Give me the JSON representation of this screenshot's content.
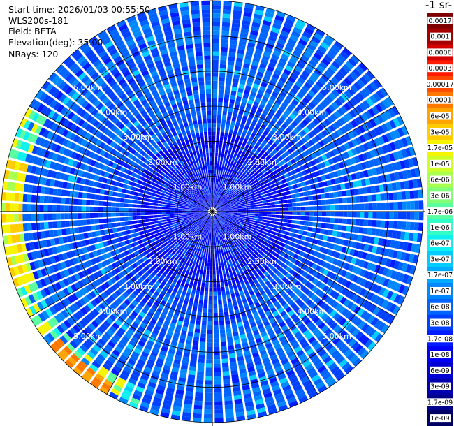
{
  "info": {
    "start_time": "Start time: 2026/01/03 00:55:50",
    "instrument": "WLS200s-181",
    "field": "Field: BETA",
    "elevation": "Elevation(deg): 35.00",
    "nrays": "NRays: 120"
  },
  "colorbar": {
    "title": "-1 sr-",
    "labels": [
      "0.0017",
      "0.001",
      "0.0006",
      "0.0003",
      "0.00017",
      "0.0001",
      "6e-05",
      "3e-05",
      "1.7e-05",
      "1e-05",
      "6e-06",
      "3e-06",
      "1.7e-06",
      "1e-06",
      "6e-07",
      "3e-07",
      "1.7e-07",
      "1e-07",
      "6e-08",
      "3e-08",
      "1.7e-08",
      "1e-08",
      "6e-09",
      "3e-09",
      "1.7e-09",
      "1e-09"
    ],
    "colors": [
      "#7f0000",
      "#a50000",
      "#d40000",
      "#ff1a00",
      "#ff4a00",
      "#ff7800",
      "#ffa400",
      "#ffcc00",
      "#f6f400",
      "#cfff28",
      "#a8ff50",
      "#81ff78",
      "#5affa0",
      "#32ffc8",
      "#10f0ee",
      "#00cdff",
      "#00aaff",
      "#0088ff",
      "#0064ff",
      "#0040ff",
      "#001cff",
      "#0000f5",
      "#0000d2",
      "#0000ae",
      "#00008b",
      "#000064"
    ]
  },
  "chart_data": {
    "type": "ppi",
    "field": "BETA",
    "range_rings_km": [
      1,
      2,
      3,
      4,
      5
    ],
    "ring_labels": [
      "1.00km",
      "2.00km",
      "3.00km",
      "4.00km",
      "5.00km"
    ],
    "max_range_km": 6.0,
    "nrays": 120,
    "elevation_deg": 35.0
  }
}
